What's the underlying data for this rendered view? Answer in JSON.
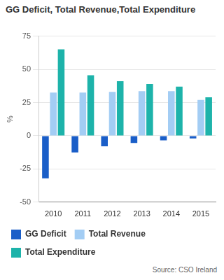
{
  "chart_data": {
    "type": "bar",
    "title": "GG Deficit, Total Revenue,Total Expenditure",
    "y_label": "%",
    "source": "Source: CSO Ireland",
    "categories": [
      "2010",
      "2011",
      "2012",
      "2013",
      "2014",
      "2015"
    ],
    "series": [
      {
        "name": "GG Deficit",
        "color": "#1a5ec8",
        "values": [
          -32,
          -12.5,
          -8,
          -5.5,
          -3.5,
          -2
        ]
      },
      {
        "name": "Total Revenue",
        "color": "#a3cdf4",
        "values": [
          32.5,
          32.5,
          33,
          33.5,
          33.5,
          27
        ]
      },
      {
        "name": "Total Expenditure",
        "color": "#1db3aa",
        "values": [
          65,
          45.5,
          41,
          39,
          37,
          29
        ]
      }
    ],
    "ylim": [
      -50,
      75
    ],
    "yticks": [
      -50,
      -25,
      0,
      25,
      50,
      75
    ],
    "grid": true,
    "legend": "bottom"
  }
}
